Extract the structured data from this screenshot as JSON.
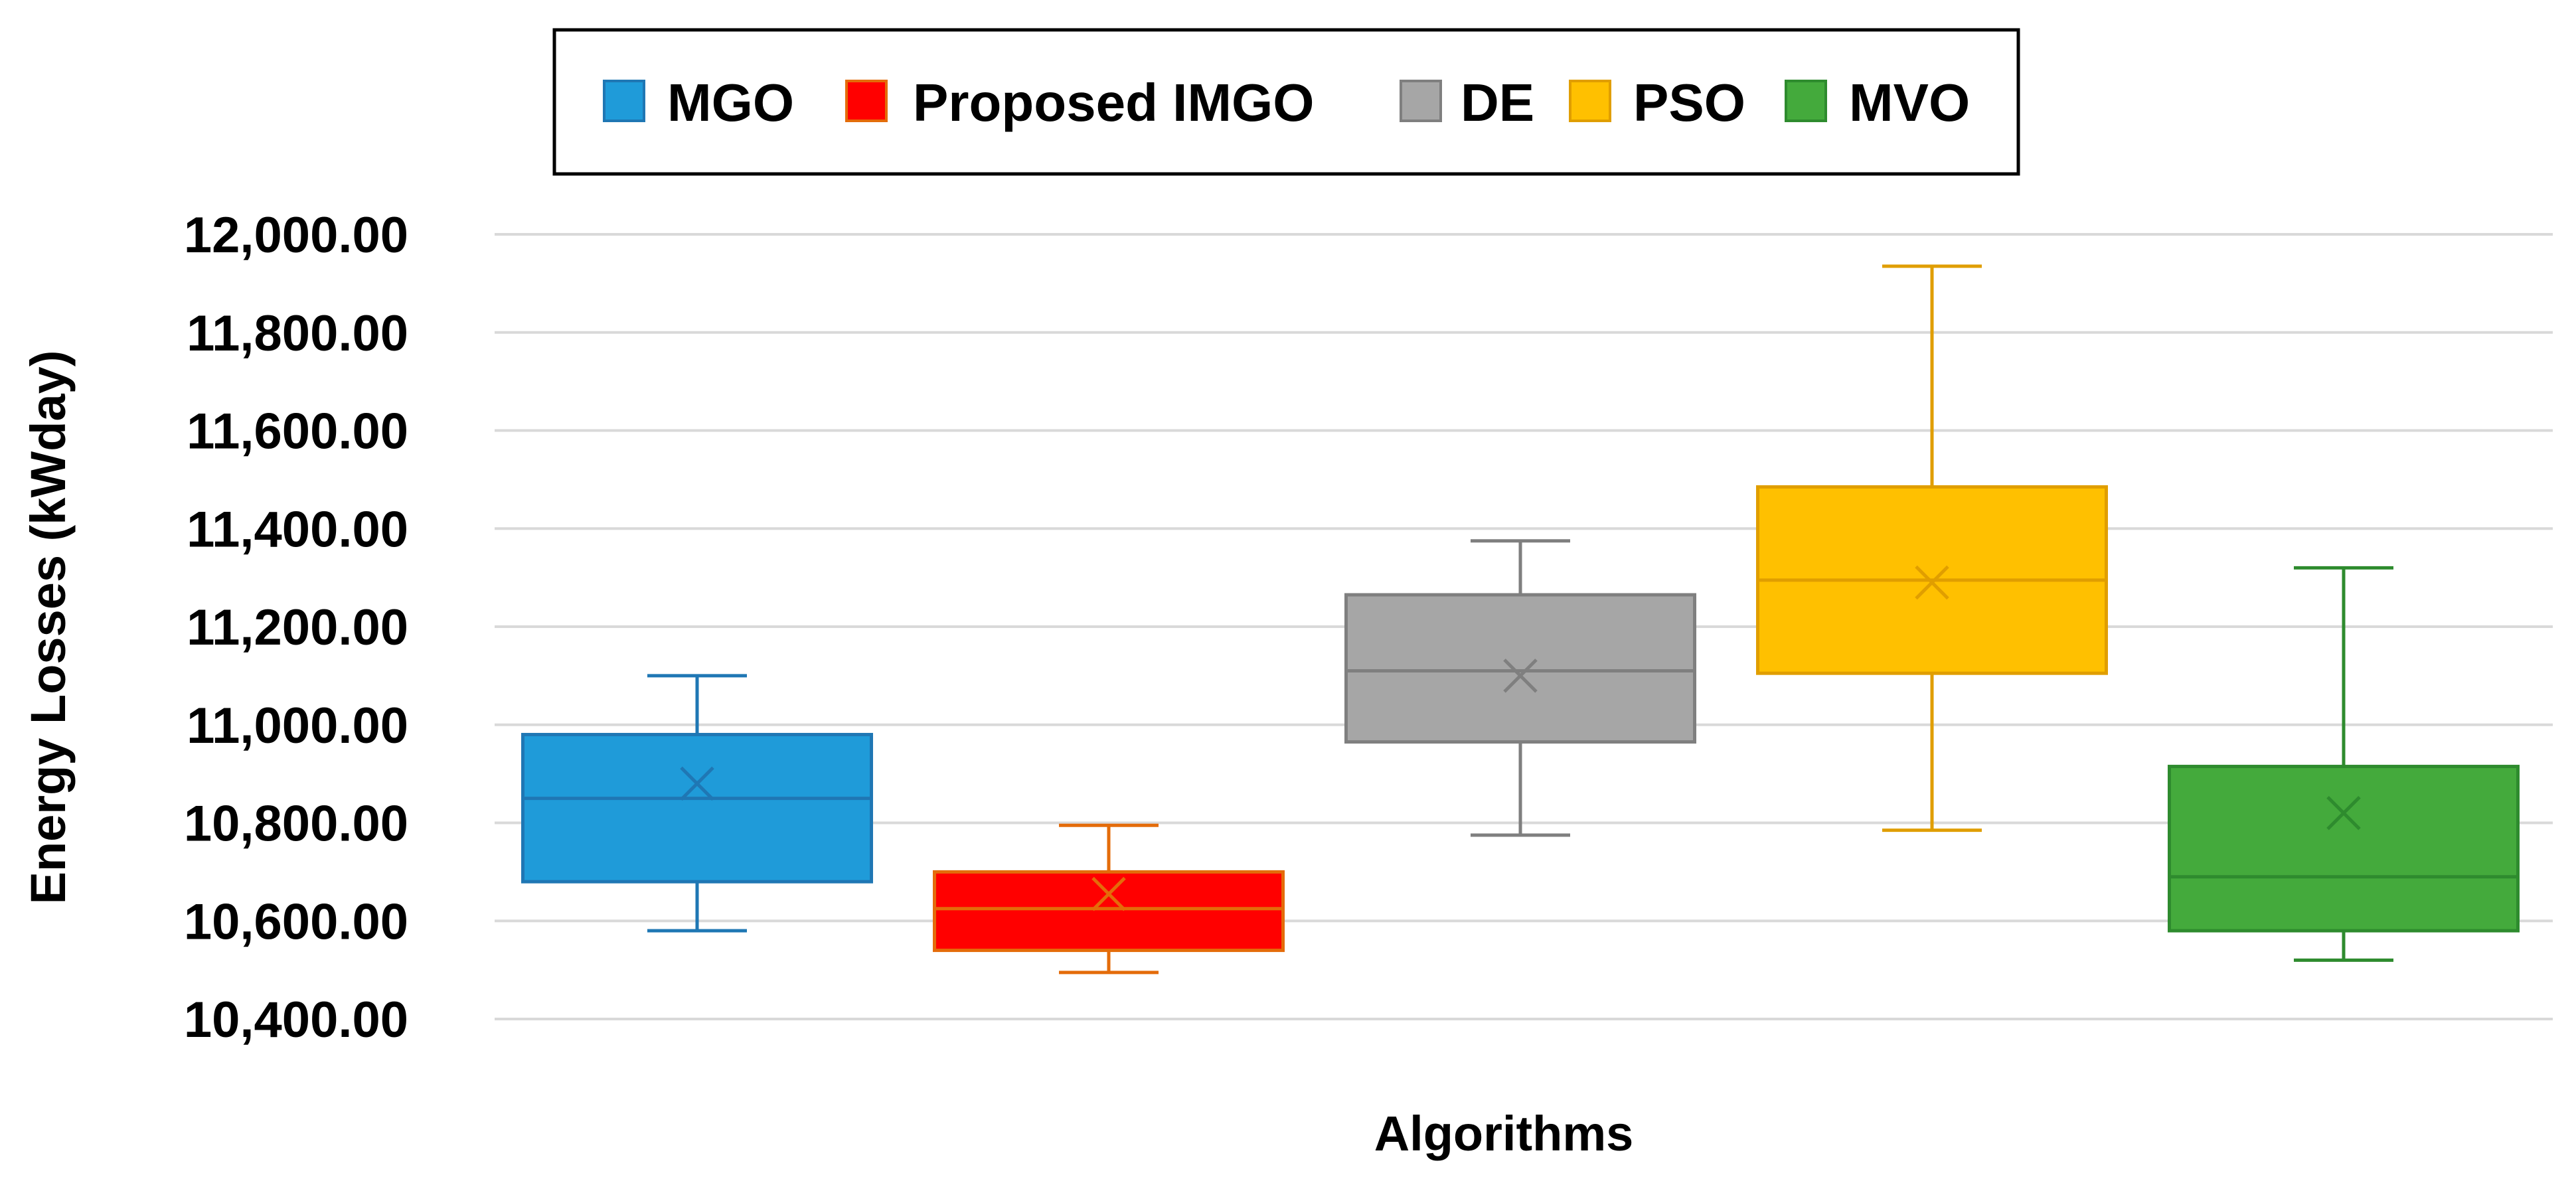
{
  "chart_data": {
    "type": "box",
    "title": "",
    "xlabel": "Algorithms",
    "ylabel": "Energy Losses (kWday)",
    "ylim": [
      10400,
      12000
    ],
    "ytick_values": [
      10400,
      10600,
      10800,
      11000,
      11200,
      11400,
      11600,
      11800,
      12000
    ],
    "ytick_labels": [
      "10,400.00",
      "10,600.00",
      "10,800.00",
      "11,000.00",
      "11,200.00",
      "11,400.00",
      "11,600.00",
      "11,800.00",
      "12,000.00"
    ],
    "grid": true,
    "legend_position": "top-center",
    "series": [
      {
        "name": "MGO",
        "color": "#1f9bd9",
        "edge": "#1f77b4",
        "min": 10580,
        "q1": 10680,
        "median": 10850,
        "mean": 10880,
        "q3": 10980,
        "max": 11100
      },
      {
        "name": "Proposed IMGO",
        "color": "#ff0000",
        "edge": "#e46c0a",
        "min": 10495,
        "q1": 10540,
        "median": 10625,
        "mean": 10655,
        "q3": 10700,
        "max": 10795
      },
      {
        "name": "DE",
        "color": "#a6a6a6",
        "edge": "#7f7f7f",
        "min": 10775,
        "q1": 10965,
        "median": 11110,
        "mean": 11100,
        "q3": 11265,
        "max": 11375
      },
      {
        "name": "PSO",
        "color": "#ffc000",
        "edge": "#e09e00",
        "min": 10785,
        "q1": 11105,
        "median": 11295,
        "mean": 11290,
        "q3": 11485,
        "max": 11935
      },
      {
        "name": "MVO",
        "color": "#44aa3c",
        "edge": "#2e8b2e",
        "min": 10520,
        "q1": 10580,
        "median": 10690,
        "mean": 10820,
        "q3": 10915,
        "max": 11320
      }
    ]
  }
}
